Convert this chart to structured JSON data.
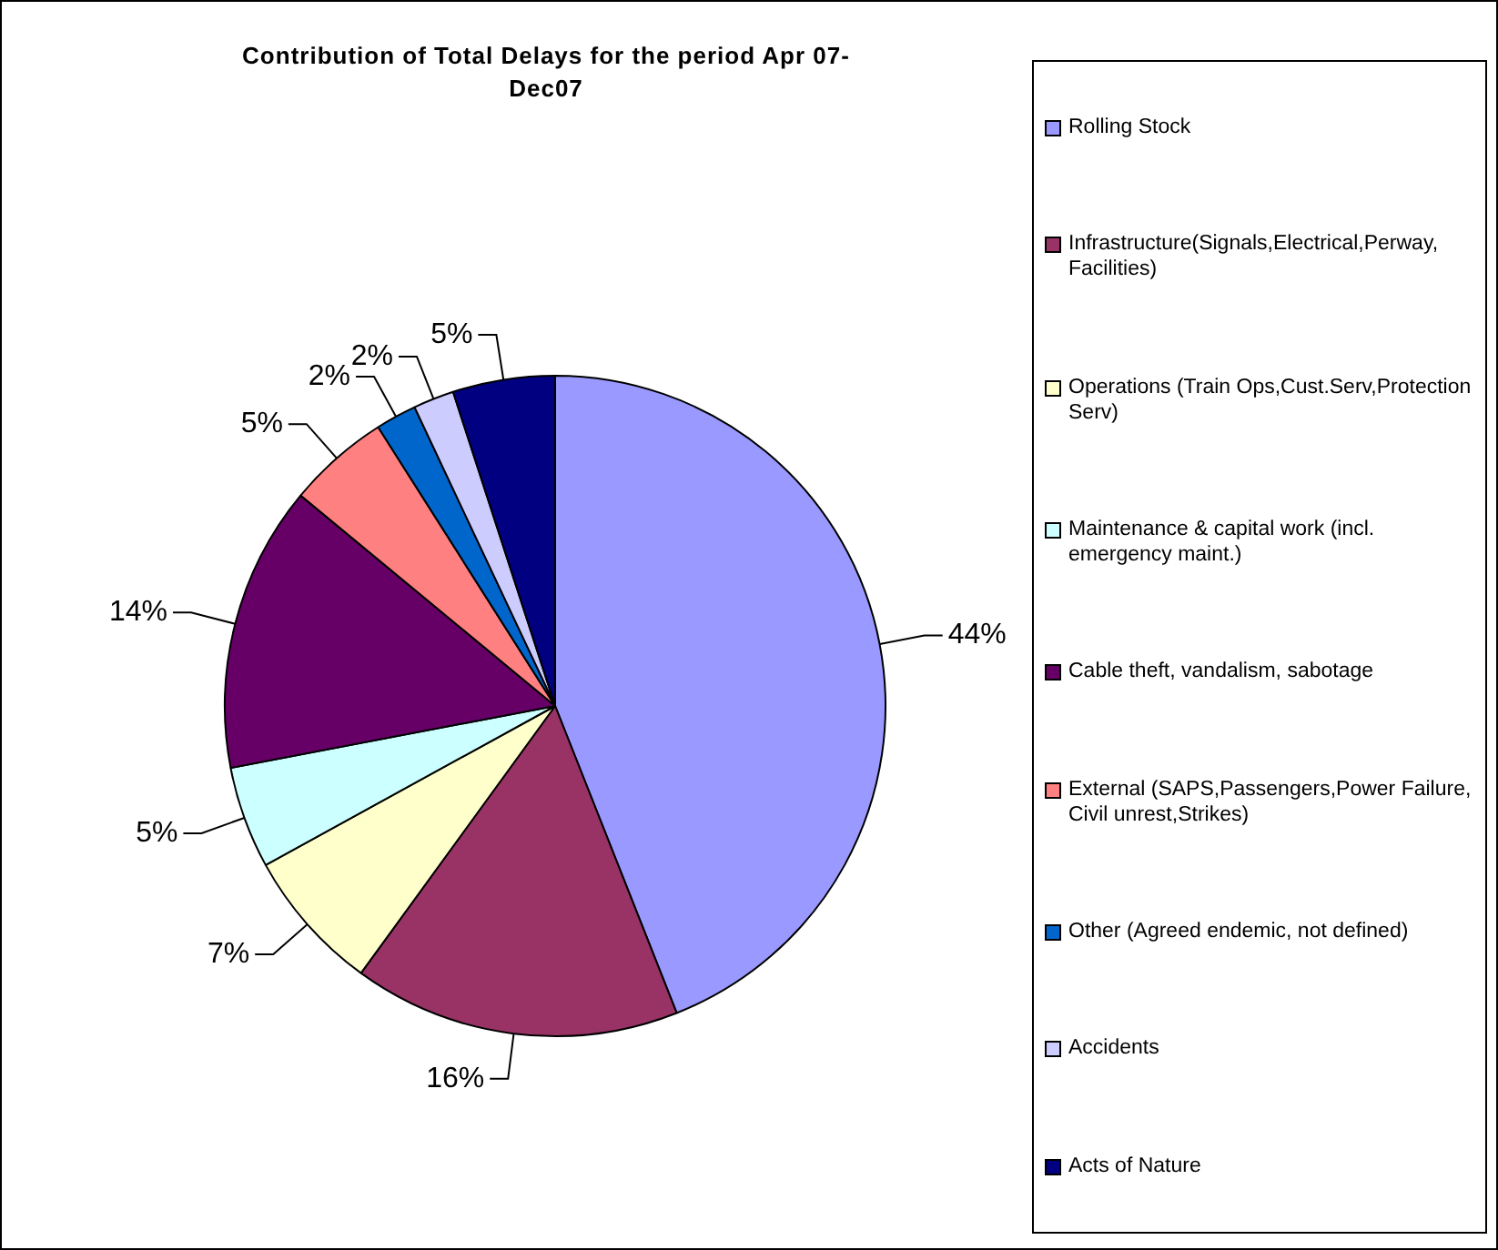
{
  "chart_data": {
    "type": "pie",
    "title": "Contribution of Total Delays for the period Apr 07-Dec07",
    "categories": [
      "Rolling Stock",
      "Infrastructure(Signals,Electrical,Perway,Facilities)",
      "Operations (Train Ops,Cust.Serv,Protection Serv)",
      "Maintenance & capital work (incl. emergency maint.)",
      "Cable theft, vandalism, sabotage",
      "External (SAPS,Passengers,Power Failure,Civil unrest,Strikes)",
      "Other (Agreed endemic, not defined)",
      "Accidents",
      "Acts of Nature"
    ],
    "values": [
      44,
      16,
      7,
      5,
      14,
      5,
      2,
      2,
      5
    ],
    "colors": [
      "#9999ff",
      "#993366",
      "#ffffcc",
      "#ccffff",
      "#660066",
      "#ff8080",
      "#0066cc",
      "#ccccff",
      "#000080"
    ],
    "value_labels": [
      "44%",
      "16%",
      "7%",
      "5%",
      "14%",
      "5%",
      "2%",
      "2%",
      "5%"
    ],
    "legend": "right"
  }
}
